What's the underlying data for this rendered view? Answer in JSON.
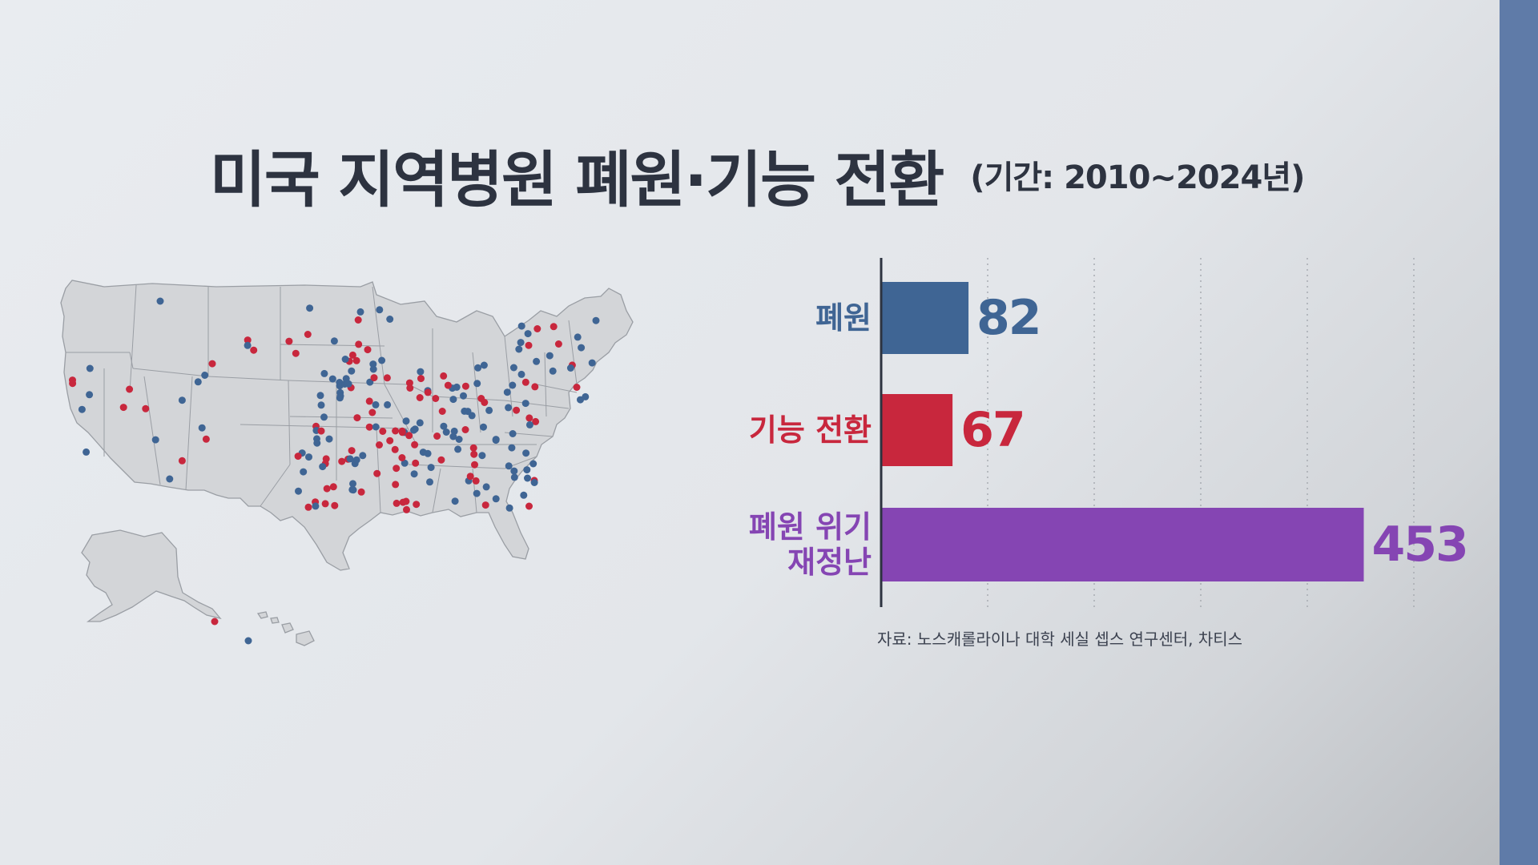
{
  "title": {
    "main": "미국 지역병원 폐원·기능 전환",
    "sub": "(기간: 2010~2024년)"
  },
  "colors": {
    "closure": "#3f6594",
    "conversion": "#c8273d",
    "crisis": "#8545b3",
    "map_fill": "#d3d5d8",
    "map_stroke": "#9a9ea4",
    "text_dark": "#2d3340"
  },
  "map": {
    "legend_colors": {
      "closed": "#3f6594",
      "converted": "#c8273d"
    }
  },
  "chart_data": {
    "type": "bar",
    "orientation": "horizontal",
    "categories": [
      "폐원",
      "기능 전환",
      "폐원 위기\n재정난"
    ],
    "values": [
      82,
      67,
      453
    ],
    "colors": [
      "#3f6594",
      "#c8273d",
      "#8545b3"
    ],
    "title": "",
    "xlabel": "",
    "ylabel": "",
    "xlim": [
      0,
      500
    ],
    "grid": "vertical-dotted",
    "data_labels": [
      "82",
      "67",
      "453"
    ]
  },
  "source": "자료: 노스캐롤라이나 대학 세실 셉스 연구센터, 차티스"
}
